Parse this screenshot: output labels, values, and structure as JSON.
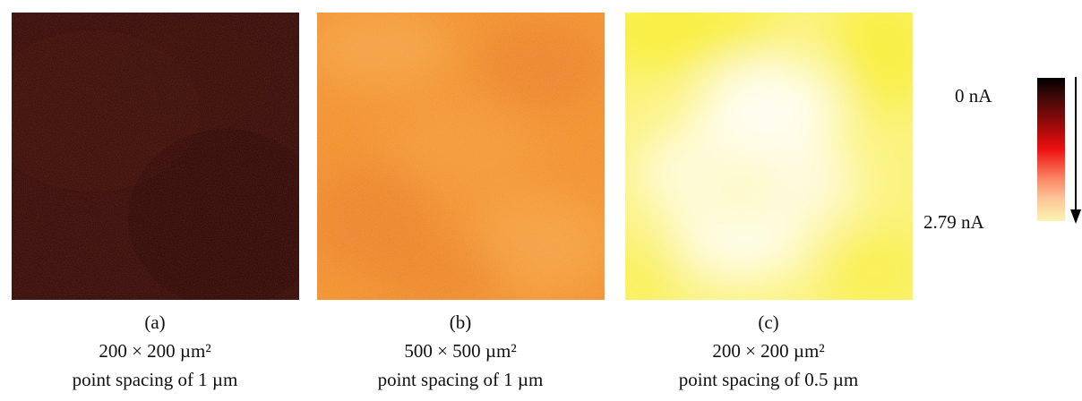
{
  "panels": [
    {
      "label": "(a)",
      "area": "200  × 200 µm²",
      "spacing": "point spacing of 1 µm",
      "colors": {
        "base": "#2e0a08",
        "mottle": [
          "#3a0e0a",
          "#240605",
          "#341009"
        ]
      }
    },
    {
      "label": "(b)",
      "area": "500  × 500 µm²",
      "spacing": "point spacing of 1 µm",
      "colors": {
        "base": "#f2902f",
        "mottle": [
          "#f5a548",
          "#ea7e2a",
          "#f49a3c"
        ]
      }
    },
    {
      "label": "(c)",
      "area": "200  × 200 µm²",
      "spacing": "point spacing of 0.5 µm",
      "colors": {
        "base": "#fbf380",
        "mottle": [
          "#fffbe6",
          "#fffef5",
          "#f8ee3c"
        ]
      }
    }
  ],
  "scale": {
    "min_label": "0 nA",
    "max_label": "2.79 nA",
    "colors": [
      "#000000",
      "#c00b0b",
      "#ee1111",
      "#fcc498",
      "#fdf3b0"
    ]
  }
}
